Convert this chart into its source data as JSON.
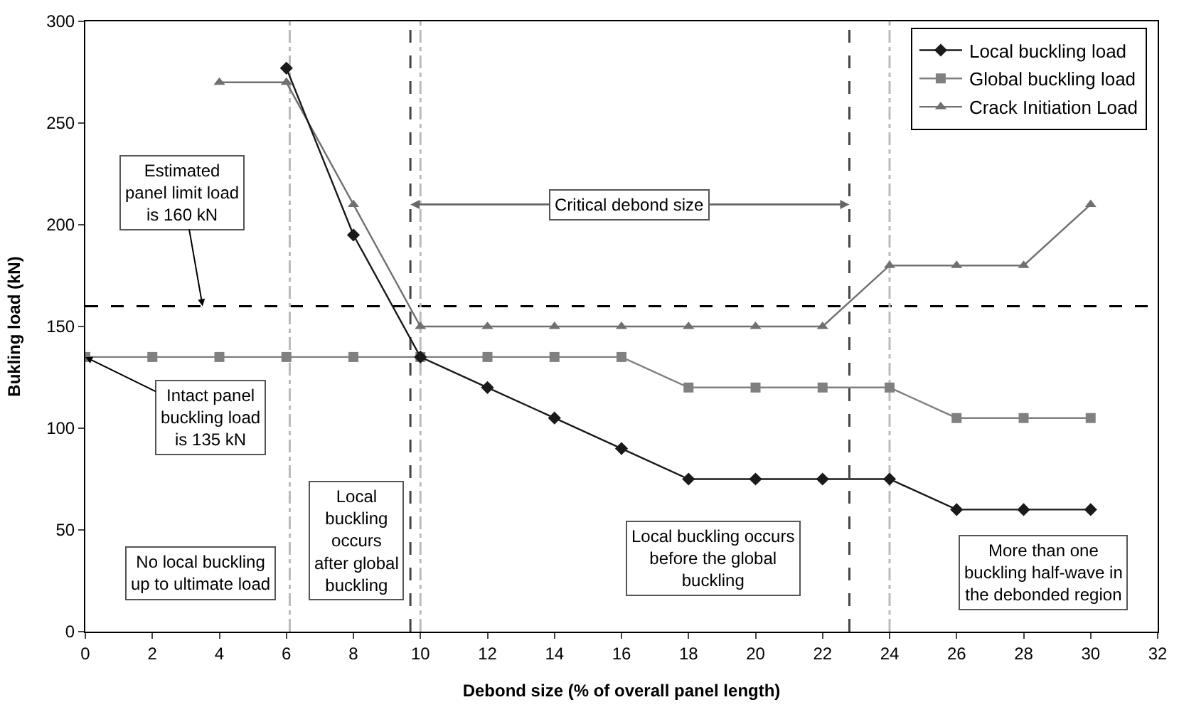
{
  "chart_data": {
    "type": "line",
    "xlabel": "Debond size (% of overall panel length)",
    "ylabel": "Bukling load (kN)",
    "xlim": [
      0,
      32
    ],
    "xticks": [
      0,
      2,
      4,
      6,
      8,
      10,
      12,
      14,
      16,
      18,
      20,
      22,
      24,
      26,
      28,
      30,
      32
    ],
    "ylim": [
      0,
      300
    ],
    "yticks": [
      0,
      50,
      100,
      150,
      200,
      250,
      300
    ],
    "grid": false,
    "legend": "top right",
    "line_style": "solid",
    "series": [
      {
        "name": "Local buckling load",
        "color": "#1a1a1a",
        "marker": "diamond",
        "x": [
          6,
          8,
          10,
          12,
          14,
          16,
          18,
          20,
          22,
          24,
          26,
          28,
          30
        ],
        "values": [
          277,
          195,
          135,
          120,
          105,
          90,
          75,
          75,
          75,
          75,
          60,
          60,
          60
        ]
      },
      {
        "name": "Global buckling load",
        "color": "#808080",
        "marker": "square",
        "x": [
          0,
          2,
          4,
          6,
          8,
          10,
          12,
          14,
          16,
          18,
          20,
          22,
          24,
          26,
          28,
          30
        ],
        "values": [
          135,
          135,
          135,
          135,
          135,
          135,
          135,
          135,
          135,
          120,
          120,
          120,
          120,
          105,
          105,
          105
        ]
      },
      {
        "name": "Crack Initiation Load",
        "color": "#707070",
        "marker": "triangle",
        "x": [
          4,
          6,
          8,
          10,
          12,
          14,
          16,
          18,
          20,
          22,
          24,
          26,
          28,
          30
        ],
        "values": [
          270,
          270,
          210,
          150,
          150,
          150,
          150,
          150,
          150,
          150,
          180,
          180,
          180,
          210
        ]
      }
    ],
    "ref_lines": [
      {
        "axis": "y",
        "value": 160,
        "color": "#000000",
        "line_style": "dashed"
      },
      {
        "axis": "x",
        "value": 6.1,
        "color": "#bbbbbb",
        "line_style": "dotted"
      },
      {
        "axis": "x",
        "value": 10,
        "color": "#bbbbbb",
        "line_style": "dotted"
      },
      {
        "axis": "x",
        "value": 24,
        "color": "#bbbbbb",
        "line_style": "dotted"
      },
      {
        "axis": "x",
        "value": 9.7,
        "color": "#444444",
        "line_style": "dashed"
      },
      {
        "axis": "x",
        "value": 22.8,
        "color": "#444444",
        "line_style": "dashed"
      }
    ],
    "annotations": [
      {
        "text": "Estimated\npanel limit load\nis 160 kN",
        "x": 3.5,
        "y": 160
      },
      {
        "text": "Intact panel\nbuckling load\nis 135 kN",
        "x": 0,
        "y": 135
      },
      {
        "text": "Critical debond size",
        "x": 22.8,
        "y": 210
      },
      "No local buckling\nup to ultimate load",
      "Local\nbuckling\noccurs\nafter global\nbuckling",
      "Local buckling occurs\nbefore the global\nbuckling",
      "More than one\nbuckling half-wave in\nthe debonded region"
    ]
  }
}
